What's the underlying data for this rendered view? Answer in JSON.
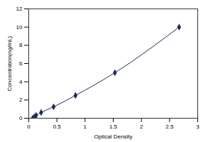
{
  "chart_data": {
    "type": "line",
    "x_label": "Optical Density",
    "y_label": "Concentration(ng/mL)",
    "x": [
      0.07,
      0.1,
      0.13,
      0.22,
      0.44,
      0.83,
      1.53,
      2.67
    ],
    "values": [
      0,
      0.16,
      0.31,
      0.63,
      1.25,
      2.5,
      5,
      10
    ],
    "color": "#1f2a5c",
    "marker": "diamond",
    "line_style": "solid",
    "xlim": [
      0,
      3
    ],
    "xticks": [
      0,
      0.5,
      1,
      1.5,
      2,
      2.5,
      3
    ],
    "ylim": [
      0,
      12
    ],
    "yticks": [
      0,
      2,
      4,
      6,
      8,
      10,
      12
    ],
    "grid": false
  }
}
